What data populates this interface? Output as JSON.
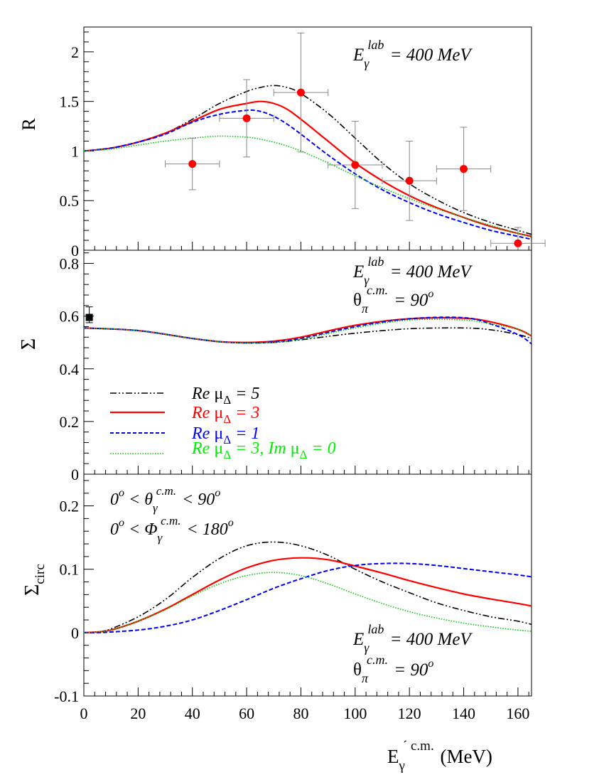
{
  "chart_data": [
    {
      "type": "line",
      "ylabel": "R",
      "xlim": [
        0,
        165
      ],
      "ylim": [
        0,
        2.25
      ],
      "y_ticks": [
        "0",
        "0.5",
        "1",
        "1.5",
        "2"
      ],
      "annotation": {
        "main": "E",
        "sub": "γ",
        "sup": "lab",
        "rest": " = 400 MeV"
      },
      "series": [
        {
          "name": "Re μΔ = 5",
          "color": "#000000",
          "dash": "dashdot",
          "x": [
            0,
            10,
            20,
            30,
            40,
            50,
            60,
            65,
            70,
            75,
            80,
            90,
            100,
            110,
            120,
            130,
            140,
            150,
            160,
            165
          ],
          "y": [
            1.0,
            1.03,
            1.09,
            1.18,
            1.32,
            1.48,
            1.6,
            1.64,
            1.66,
            1.64,
            1.58,
            1.38,
            1.13,
            0.88,
            0.67,
            0.51,
            0.38,
            0.28,
            0.2,
            0.16
          ]
        },
        {
          "name": "Re μΔ = 3",
          "color": "#ff0000",
          "dash": "solid",
          "x": [
            0,
            10,
            20,
            30,
            40,
            50,
            60,
            65,
            70,
            75,
            80,
            90,
            100,
            110,
            120,
            130,
            140,
            150,
            160,
            165
          ],
          "y": [
            1.0,
            1.03,
            1.09,
            1.18,
            1.3,
            1.42,
            1.48,
            1.5,
            1.48,
            1.42,
            1.32,
            1.1,
            0.88,
            0.7,
            0.55,
            0.43,
            0.33,
            0.24,
            0.17,
            0.14
          ]
        },
        {
          "name": "Re μΔ = 1",
          "color": "#0000ff",
          "dash": "dashed",
          "x": [
            0,
            10,
            20,
            30,
            40,
            50,
            60,
            65,
            70,
            75,
            80,
            90,
            100,
            110,
            120,
            130,
            140,
            150,
            160,
            165
          ],
          "y": [
            1.0,
            1.03,
            1.09,
            1.17,
            1.29,
            1.37,
            1.41,
            1.4,
            1.35,
            1.27,
            1.17,
            0.96,
            0.77,
            0.61,
            0.48,
            0.37,
            0.28,
            0.2,
            0.14,
            0.11
          ]
        },
        {
          "name": "Re μΔ = 3, Im μΔ = 0",
          "color": "#00cc00",
          "dash": "dotted",
          "x": [
            0,
            10,
            20,
            30,
            40,
            50,
            60,
            65,
            70,
            75,
            80,
            90,
            100,
            110,
            120,
            130,
            140,
            150,
            160,
            165
          ],
          "y": [
            1.0,
            1.02,
            1.06,
            1.1,
            1.13,
            1.15,
            1.14,
            1.12,
            1.09,
            1.05,
            1.0,
            0.88,
            0.75,
            0.63,
            0.52,
            0.42,
            0.33,
            0.25,
            0.17,
            0.13
          ]
        }
      ],
      "data_points": [
        {
          "x": 40,
          "y": 0.87,
          "xerr": 10,
          "yerr_low": 0.26,
          "yerr_high": 0.26
        },
        {
          "x": 60,
          "y": 1.33,
          "xerr": 10,
          "yerr_low": 0.39,
          "yerr_high": 0.39
        },
        {
          "x": 80,
          "y": 1.59,
          "xerr": 10,
          "yerr_low": 0.6,
          "yerr_high": 0.6
        },
        {
          "x": 100,
          "y": 0.86,
          "xerr": 10,
          "yerr_low": 0.44,
          "yerr_high": 0.44
        },
        {
          "x": 120,
          "y": 0.7,
          "xerr": 10,
          "yerr_low": 0.4,
          "yerr_high": 0.4
        },
        {
          "x": 140,
          "y": 0.82,
          "xerr": 10,
          "yerr_low": 0.42,
          "yerr_high": 0.42
        },
        {
          "x": 160,
          "y": 0.07,
          "xerr": 10,
          "yerr_low": 0.07,
          "yerr_high": 0.16
        }
      ]
    },
    {
      "type": "line",
      "ylabel": "Σ",
      "xlim": [
        0,
        165
      ],
      "ylim": [
        0,
        0.85
      ],
      "y_ticks": [
        "0",
        "0.2",
        "0.4",
        "0.6",
        "0.8"
      ],
      "annotation": {
        "main": "E",
        "sub": "γ",
        "sup": "lab",
        "rest": " = 400 MeV"
      },
      "annotation2": {
        "main": "θ",
        "sub": "π",
        "sup": "c.m.",
        "rest": " = 90",
        "rest_sup": "o"
      },
      "series": [
        {
          "name": "Re μΔ = 5",
          "color": "#000000",
          "dash": "dashdot",
          "x": [
            0,
            20,
            40,
            50,
            60,
            70,
            80,
            100,
            120,
            140,
            150,
            160,
            165
          ],
          "y": [
            0.555,
            0.545,
            0.515,
            0.503,
            0.498,
            0.5,
            0.51,
            0.535,
            0.552,
            0.555,
            0.548,
            0.53,
            0.515
          ]
        },
        {
          "name": "Re μΔ = 3",
          "color": "#ff0000",
          "dash": "solid",
          "x": [
            0,
            20,
            40,
            50,
            60,
            70,
            80,
            100,
            120,
            140,
            150,
            160,
            165
          ],
          "y": [
            0.555,
            0.545,
            0.515,
            0.503,
            0.5,
            0.505,
            0.52,
            0.565,
            0.59,
            0.592,
            0.578,
            0.55,
            0.525
          ]
        },
        {
          "name": "Re μΔ = 1",
          "color": "#0000ff",
          "dash": "dashed",
          "x": [
            0,
            20,
            40,
            50,
            60,
            70,
            80,
            100,
            120,
            140,
            150,
            160,
            165
          ],
          "y": [
            0.555,
            0.545,
            0.515,
            0.503,
            0.498,
            0.502,
            0.515,
            0.56,
            0.59,
            0.594,
            0.57,
            0.53,
            0.495
          ]
        },
        {
          "name": "Re μΔ = 3, Im μΔ = 0",
          "color": "#00cc00",
          "dash": "dotted",
          "x": [
            0,
            20,
            40,
            50,
            60,
            70,
            80,
            100,
            120,
            140,
            150,
            160,
            165
          ],
          "y": [
            0.555,
            0.545,
            0.515,
            0.503,
            0.498,
            0.5,
            0.512,
            0.555,
            0.585,
            0.585,
            0.57,
            0.55,
            0.525
          ]
        }
      ],
      "data_points": [
        {
          "x": 2,
          "y": 0.595,
          "marker": "square",
          "yerr_low": 0.02,
          "yerr_high": 0.04
        }
      ],
      "legend": {
        "placement": "lower-left",
        "entries": [
          {
            "text_a": "Re ",
            "text_b": "μ",
            "text_c": "Δ",
            "text_d": " = 5",
            "text_e": "",
            "text_f": "",
            "text_g": "",
            "text_h": ""
          },
          {
            "text_a": "Re ",
            "text_b": "μ",
            "text_c": "Δ",
            "text_d": " = 3",
            "text_e": "",
            "text_f": "",
            "text_g": "",
            "text_h": ""
          },
          {
            "text_a": "Re ",
            "text_b": "μ",
            "text_c": "Δ",
            "text_d": " = 1",
            "text_e": "",
            "text_f": "",
            "text_g": "",
            "text_h": ""
          },
          {
            "text_a": "Re ",
            "text_b": "μ",
            "text_c": "Δ",
            "text_d": " = 3, ",
            "text_e": "Im ",
            "text_f": "μ",
            "text_g": "Δ",
            "text_h": " = 0"
          }
        ]
      }
    },
    {
      "type": "line",
      "ylabel": "Σ",
      "ylabel_sub": "circ",
      "xlim": [
        0,
        165
      ],
      "ylim": [
        -0.1,
        0.25
      ],
      "x_ticks": [
        "0",
        "20",
        "40",
        "60",
        "80",
        "100",
        "120",
        "140",
        "160"
      ],
      "y_ticks": [
        "-0.1",
        "0",
        "0.1",
        "0.2"
      ],
      "xlabel": {
        "main": "E",
        "sub": "γ",
        "sup": "´ c.m.",
        "rest": " (MeV)"
      },
      "annotation": {
        "main": "E",
        "sub": "γ",
        "sup": "lab",
        "rest": " = 400 MeV"
      },
      "annotation2": {
        "main": "θ",
        "sub": "π",
        "sup": "c.m.",
        "rest": " = 90",
        "rest_sup": "o"
      },
      "cut1": {
        "pre": "0",
        "pre_sup": "o",
        "mid": " < θ",
        "sub": "γ",
        "sup": "c.m.",
        "rest": " < 90",
        "rest_sup": "o"
      },
      "cut2": {
        "pre": "0",
        "pre_sup": "o",
        "mid": " < Φ",
        "sub": "γ",
        "sup": "c.m.",
        "rest": " < 180",
        "rest_sup": "o"
      },
      "series": [
        {
          "name": "Re μΔ = 5",
          "color": "#000000",
          "dash": "dashdot",
          "x": [
            0,
            5,
            10,
            20,
            30,
            40,
            50,
            60,
            70,
            80,
            90,
            100,
            110,
            120,
            130,
            140,
            150,
            160,
            165
          ],
          "y": [
            0,
            0.001,
            0.006,
            0.025,
            0.052,
            0.087,
            0.117,
            0.137,
            0.143,
            0.137,
            0.122,
            0.1,
            0.08,
            0.063,
            0.047,
            0.035,
            0.025,
            0.018,
            0.013
          ]
        },
        {
          "name": "Re μΔ = 3",
          "color": "#ff0000",
          "dash": "solid",
          "x": [
            0,
            5,
            10,
            20,
            30,
            40,
            50,
            60,
            70,
            80,
            90,
            100,
            110,
            120,
            130,
            140,
            150,
            160,
            165
          ],
          "y": [
            0,
            0.001,
            0.004,
            0.018,
            0.037,
            0.06,
            0.083,
            0.102,
            0.114,
            0.118,
            0.115,
            0.105,
            0.094,
            0.082,
            0.071,
            0.061,
            0.053,
            0.046,
            0.042
          ]
        },
        {
          "name": "Re μΔ = 1",
          "color": "#0000ff",
          "dash": "dashed",
          "x": [
            0,
            5,
            10,
            20,
            30,
            40,
            50,
            60,
            70,
            80,
            90,
            100,
            110,
            120,
            130,
            140,
            150,
            160,
            165
          ],
          "y": [
            0,
            0,
            0.001,
            0.004,
            0.01,
            0.02,
            0.035,
            0.052,
            0.07,
            0.085,
            0.098,
            0.106,
            0.109,
            0.109,
            0.106,
            0.101,
            0.096,
            0.091,
            0.088
          ]
        },
        {
          "name": "Re μΔ = 3, Im μΔ = 0",
          "color": "#00cc00",
          "dash": "dotted",
          "x": [
            0,
            5,
            10,
            20,
            30,
            40,
            50,
            60,
            70,
            80,
            90,
            100,
            110,
            120,
            130,
            140,
            150,
            160,
            165
          ],
          "y": [
            0,
            0.001,
            0.004,
            0.018,
            0.036,
            0.058,
            0.077,
            0.09,
            0.095,
            0.09,
            0.077,
            0.061,
            0.046,
            0.033,
            0.023,
            0.015,
            0.009,
            0.004,
            0.002
          ]
        }
      ]
    }
  ]
}
